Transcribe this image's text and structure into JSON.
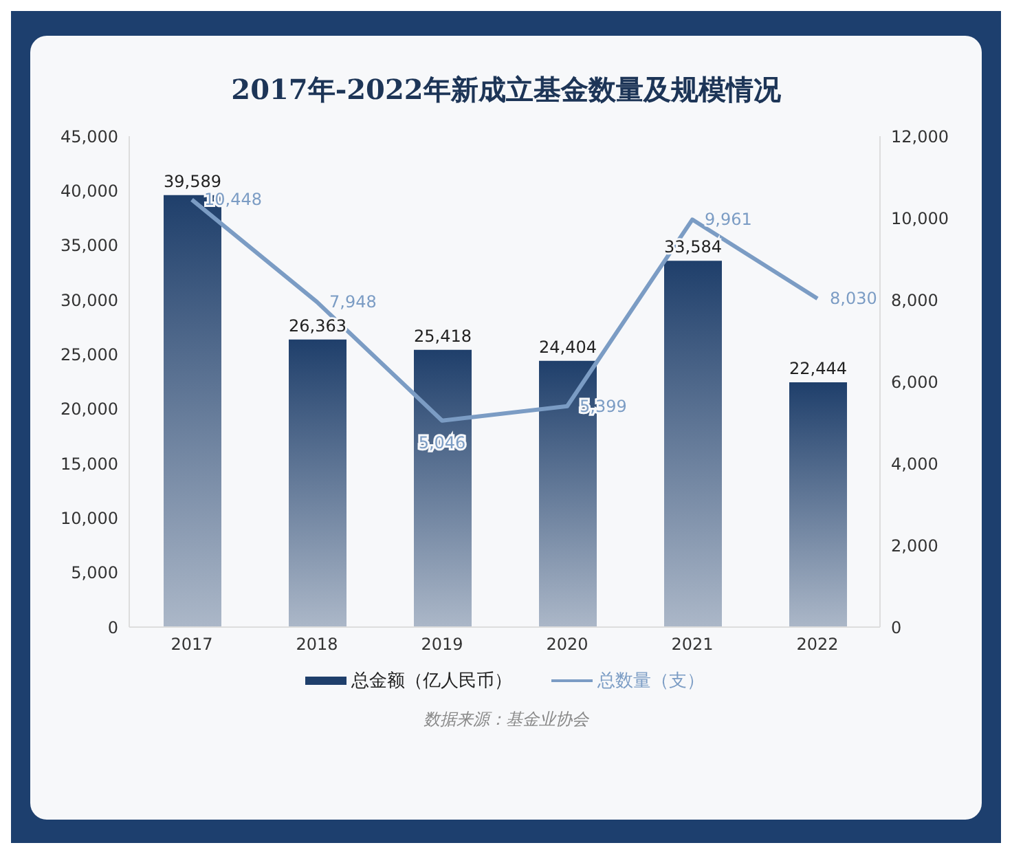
{
  "chart_data": {
    "type": "bar",
    "title": "2017年-2022年新成立基金数量及规模情况",
    "categories": [
      "2017",
      "2018",
      "2019",
      "2020",
      "2021",
      "2022"
    ],
    "series": [
      {
        "name": "总金额（亿人民币）",
        "color": "#1f3f6b",
        "values": [
          39589,
          26363,
          25418,
          24404,
          33584,
          22444
        ],
        "value_labels": [
          "39,589",
          "26,363",
          "25,418",
          "24,404",
          "33,584",
          "22,444"
        ]
      },
      {
        "name": "总数量（支）",
        "type": "line",
        "axis": "y2",
        "color": "#7b9cc4",
        "values": [
          10448,
          7948,
          5046,
          5399,
          9961,
          8030
        ],
        "value_labels": [
          "10,448",
          "7,948",
          "5,046",
          "5,399",
          "9,961",
          "8,030"
        ]
      }
    ],
    "ylim": [
      0,
      45000
    ],
    "yticks": [
      0,
      {
        "value": 5000,
        "label": "5,000"
      },
      {
        "value": 10000,
        "label": "10,000"
      },
      {
        "value": 15000,
        "label": "15,000"
      },
      {
        "value": 20000,
        "label": "20,000"
      },
      {
        "value": 25000,
        "label": "25,000"
      },
      {
        "value": 30000,
        "label": "30,000"
      },
      {
        "value": 35000,
        "label": "35,000"
      },
      {
        "value": 40000,
        "label": "40,000"
      },
      {
        "value": 45000,
        "label": "45,000"
      }
    ],
    "y2lim": [
      0,
      12000
    ],
    "y2ticks": [
      0,
      {
        "value": 2000,
        "label": "2,000"
      },
      {
        "value": 4000,
        "label": "4,000"
      },
      {
        "value": 6000,
        "label": "6,000"
      },
      {
        "value": 8000,
        "label": "8,000"
      },
      {
        "value": 10000,
        "label": "10,000"
      },
      {
        "value": 12000,
        "label": "12,000"
      }
    ],
    "legend": "bottom",
    "marker": "none",
    "line_style": "solid",
    "annotations": [
      "数据来源：基金业协会"
    ]
  }
}
